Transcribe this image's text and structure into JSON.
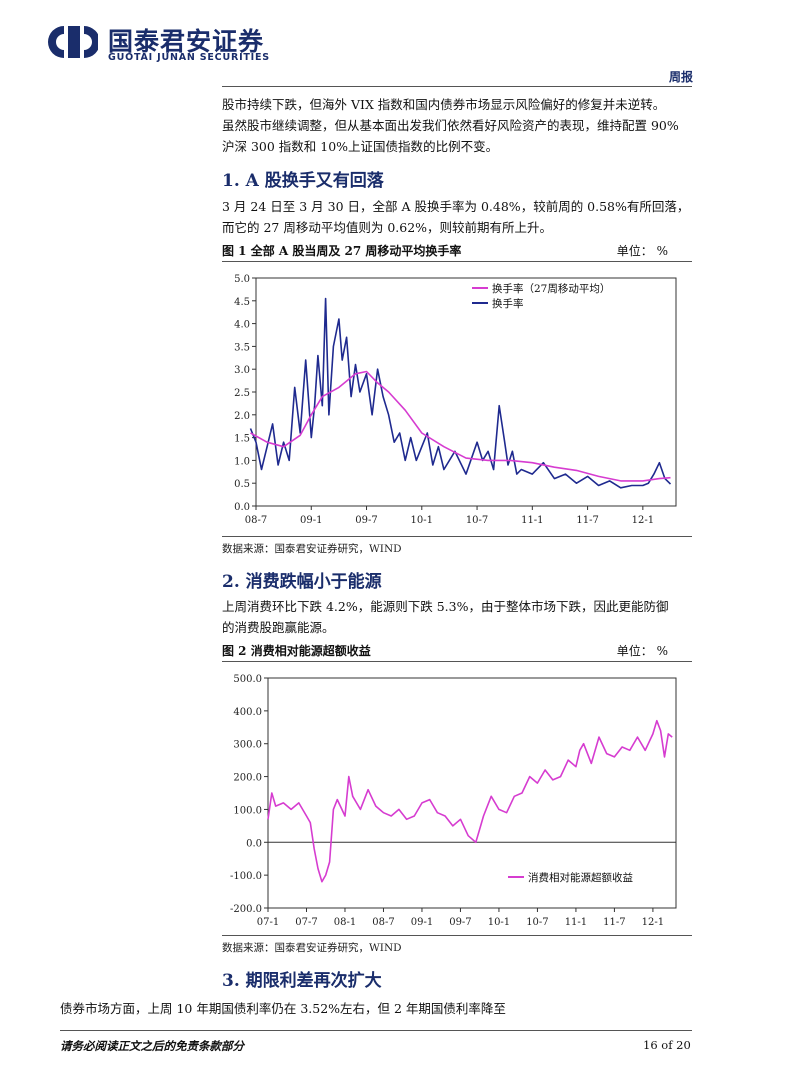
{
  "header": {
    "brand_cn": "国泰君安证券",
    "brand_en": "GUOTAI JUNAN SECURITIES",
    "tag": "周报",
    "brand_color": "#1a2d6b"
  },
  "intro": [
    "股市持续下跌，但海外 VIX 指数和国内债券市场显示风险偏好的修复并未逆转。",
    "虽然股市继续调整，但从基本面出发我们依然看好风险资产的表现，维持配置 90%",
    "沪深 300 指数和 10%上证国债指数的比例不变。"
  ],
  "section1": {
    "heading": "1.  A 股换手又有回落",
    "body": [
      "3 月 24 日至 3 月 30 日，全部 A 股换手率为 0.48%，较前周的 0.58%有所回落，",
      "而它的 27 周移动平均值则为 0.62%，则较前期有所上升。"
    ],
    "figure_title": "图  1    全部 A 股当周及 27 周移动平均换手率",
    "unit": "单位：  %",
    "source": "数据来源：国泰君安证券研究，WIND"
  },
  "section2": {
    "heading": "2.  消费跌幅小于能源",
    "body": [
      "上周消费环比下跌 4.2%，能源则下跌 5.3%，由于整体市场下跌，因此更能防御",
      "的消费股跑赢能源。"
    ],
    "figure_title": "图  2    消费相对能源超额收益",
    "unit": "单位：  %",
    "source": "数据来源：国泰君安证券研究，WIND"
  },
  "section3": {
    "heading": "3.  期限利差再次扩大",
    "body": "债券市场方面，上周 10 年期国债利率仍在 3.52%左右，但 2 年期国债利率降至"
  },
  "footer": {
    "disclaimer": "请务必阅读正文之后的免责条款部分",
    "page": "16 of  20"
  },
  "chart_data": [
    {
      "type": "line",
      "x_ticks": [
        "08-7",
        "09-1",
        "09-7",
        "10-1",
        "10-7",
        "11-1",
        "11-7",
        "12-1"
      ],
      "y_ticks": [
        "0.0",
        "0.5",
        "1.0",
        "1.5",
        "2.0",
        "2.5",
        "3.0",
        "3.5",
        "4.0",
        "4.5",
        "5.0"
      ],
      "ylim": [
        0,
        5
      ],
      "legend_position": "top-center",
      "series": [
        {
          "name": "换手率（27周移动平均）",
          "color": "#d63cd0",
          "x": [
            2008.45,
            2008.6,
            2008.75,
            2008.9,
            2009.0,
            2009.1,
            2009.25,
            2009.4,
            2009.5,
            2009.6,
            2009.7,
            2009.85,
            2010.0,
            2010.2,
            2010.4,
            2010.6,
            2010.8,
            2011.0,
            2011.2,
            2011.4,
            2011.6,
            2011.8,
            2012.0,
            2012.15,
            2012.25
          ],
          "y": [
            1.6,
            1.4,
            1.3,
            1.55,
            2.0,
            2.4,
            2.6,
            2.9,
            2.95,
            2.7,
            2.5,
            2.1,
            1.6,
            1.3,
            1.05,
            1.0,
            1.0,
            0.95,
            0.85,
            0.78,
            0.65,
            0.55,
            0.55,
            0.6,
            0.62
          ]
        },
        {
          "name": "换手率",
          "color": "#1f2a8f",
          "x": [
            2008.45,
            2008.5,
            2008.55,
            2008.6,
            2008.65,
            2008.7,
            2008.75,
            2008.8,
            2008.85,
            2008.9,
            2008.95,
            2009.0,
            2009.03,
            2009.06,
            2009.1,
            2009.13,
            2009.16,
            2009.2,
            2009.25,
            2009.28,
            2009.32,
            2009.36,
            2009.4,
            2009.44,
            2009.5,
            2009.55,
            2009.6,
            2009.65,
            2009.7,
            2009.75,
            2009.8,
            2009.85,
            2009.9,
            2009.95,
            2010.0,
            2010.05,
            2010.1,
            2010.15,
            2010.2,
            2010.3,
            2010.4,
            2010.5,
            2010.55,
            2010.6,
            2010.65,
            2010.7,
            2010.75,
            2010.78,
            2010.82,
            2010.86,
            2010.9,
            2011.0,
            2011.1,
            2011.2,
            2011.3,
            2011.4,
            2011.5,
            2011.6,
            2011.7,
            2011.8,
            2011.9,
            2012.0,
            2012.05,
            2012.1,
            2012.15,
            2012.2,
            2012.25
          ],
          "y": [
            1.7,
            1.4,
            0.8,
            1.3,
            1.8,
            0.9,
            1.4,
            1.0,
            2.6,
            1.6,
            3.2,
            1.5,
            2.2,
            3.3,
            2.2,
            4.55,
            2.0,
            3.5,
            4.1,
            3.2,
            3.7,
            2.4,
            3.1,
            2.5,
            2.9,
            2.0,
            3.0,
            2.4,
            2.0,
            1.4,
            1.6,
            1.0,
            1.5,
            1.0,
            1.3,
            1.6,
            0.9,
            1.3,
            0.8,
            1.2,
            0.7,
            1.4,
            1.0,
            1.2,
            0.8,
            2.2,
            1.4,
            0.9,
            1.2,
            0.7,
            0.8,
            0.7,
            0.95,
            0.6,
            0.7,
            0.5,
            0.65,
            0.45,
            0.55,
            0.4,
            0.45,
            0.45,
            0.5,
            0.7,
            0.95,
            0.6,
            0.48
          ]
        }
      ]
    },
    {
      "type": "line",
      "x_ticks": [
        "07-1",
        "07-7",
        "08-1",
        "08-7",
        "09-1",
        "09-7",
        "10-1",
        "10-7",
        "11-1",
        "11-7",
        "12-1"
      ],
      "y_ticks": [
        "-200.0",
        "-100.0",
        "0.0",
        "100.0",
        "200.0",
        "300.0",
        "400.0",
        "500.0"
      ],
      "ylim": [
        -200,
        500
      ],
      "legend_position": "bottom-right",
      "series": [
        {
          "name": "消费相对能源超额收益",
          "color": "#d63cd0",
          "x": [
            2007.0,
            2007.05,
            2007.1,
            2007.2,
            2007.3,
            2007.4,
            2007.5,
            2007.55,
            2007.6,
            2007.65,
            2007.7,
            2007.75,
            2007.8,
            2007.85,
            2007.9,
            2008.0,
            2008.05,
            2008.1,
            2008.2,
            2008.3,
            2008.4,
            2008.5,
            2008.6,
            2008.7,
            2008.8,
            2008.9,
            2009.0,
            2009.1,
            2009.2,
            2009.3,
            2009.4,
            2009.5,
            2009.6,
            2009.7,
            2009.75,
            2009.8,
            2009.9,
            2010.0,
            2010.1,
            2010.2,
            2010.3,
            2010.4,
            2010.5,
            2010.6,
            2010.7,
            2010.8,
            2010.9,
            2011.0,
            2011.05,
            2011.1,
            2011.2,
            2011.3,
            2011.4,
            2011.5,
            2011.6,
            2011.7,
            2011.8,
            2011.9,
            2012.0,
            2012.05,
            2012.1,
            2012.15,
            2012.2,
            2012.25
          ],
          "y": [
            70,
            150,
            110,
            120,
            100,
            120,
            80,
            60,
            -20,
            -80,
            -120,
            -100,
            -60,
            100,
            130,
            80,
            200,
            140,
            100,
            160,
            110,
            90,
            80,
            100,
            70,
            80,
            120,
            130,
            90,
            80,
            50,
            70,
            20,
            0,
            40,
            80,
            140,
            100,
            90,
            140,
            150,
            200,
            180,
            220,
            190,
            200,
            250,
            230,
            280,
            300,
            240,
            320,
            270,
            260,
            290,
            280,
            320,
            280,
            330,
            370,
            340,
            260,
            330,
            320
          ]
        }
      ]
    }
  ]
}
